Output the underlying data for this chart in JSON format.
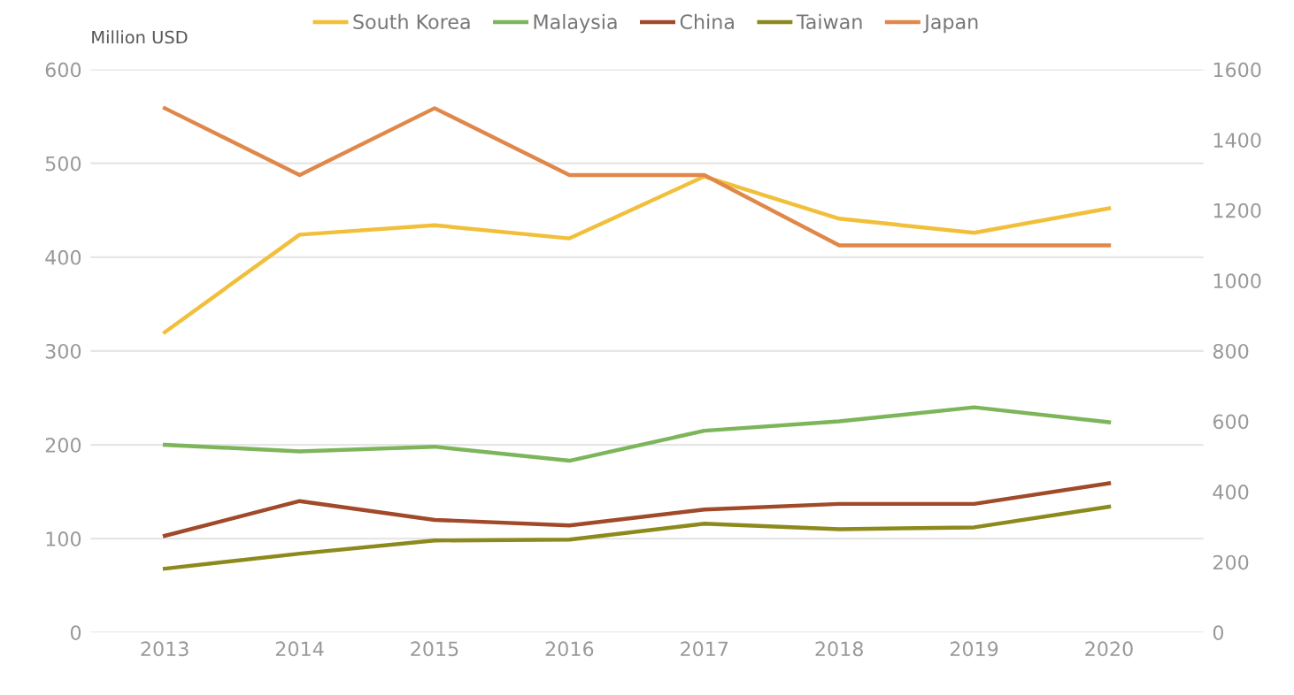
{
  "chart_data": {
    "type": "line",
    "ylabel": "Million USD",
    "x": [
      2013,
      2014,
      2015,
      2016,
      2017,
      2018,
      2019,
      2020
    ],
    "series": [
      {
        "name": "South Korea",
        "color": "#f2bf3a",
        "values": [
          320,
          424,
          434,
          420,
          486,
          441,
          426,
          452
        ]
      },
      {
        "name": "Malaysia",
        "color": "#7db55a",
        "values": [
          200,
          193,
          198,
          183,
          215,
          225,
          240,
          224
        ]
      },
      {
        "name": "China",
        "color": "#a04a2a",
        "values": [
          103,
          140,
          120,
          114,
          131,
          137,
          137,
          159
        ]
      },
      {
        "name": "Taiwan",
        "color": "#8c8a1c",
        "values": [
          68,
          84,
          98,
          99,
          116,
          110,
          112,
          134
        ]
      },
      {
        "name": "Japan",
        "color": "#e0884a",
        "axis": "y2",
        "values": [
          1490,
          1300,
          1490,
          1300,
          1300,
          1100,
          1100,
          1100
        ]
      }
    ],
    "xlim": [
      2012.45,
      2020.7
    ],
    "xticks": [
      2013,
      2014,
      2015,
      2016,
      2017,
      2018,
      2019,
      2020
    ],
    "ylim": [
      0,
      600
    ],
    "yticks": [
      0,
      100,
      200,
      300,
      400,
      500,
      600
    ],
    "y2lim": [
      0,
      1600
    ],
    "y2ticks": [
      0,
      200,
      400,
      600,
      800,
      1000,
      1200,
      1400,
      1600
    ],
    "grid": "y",
    "legend": "top",
    "marker": "none",
    "line_style": "solid"
  }
}
